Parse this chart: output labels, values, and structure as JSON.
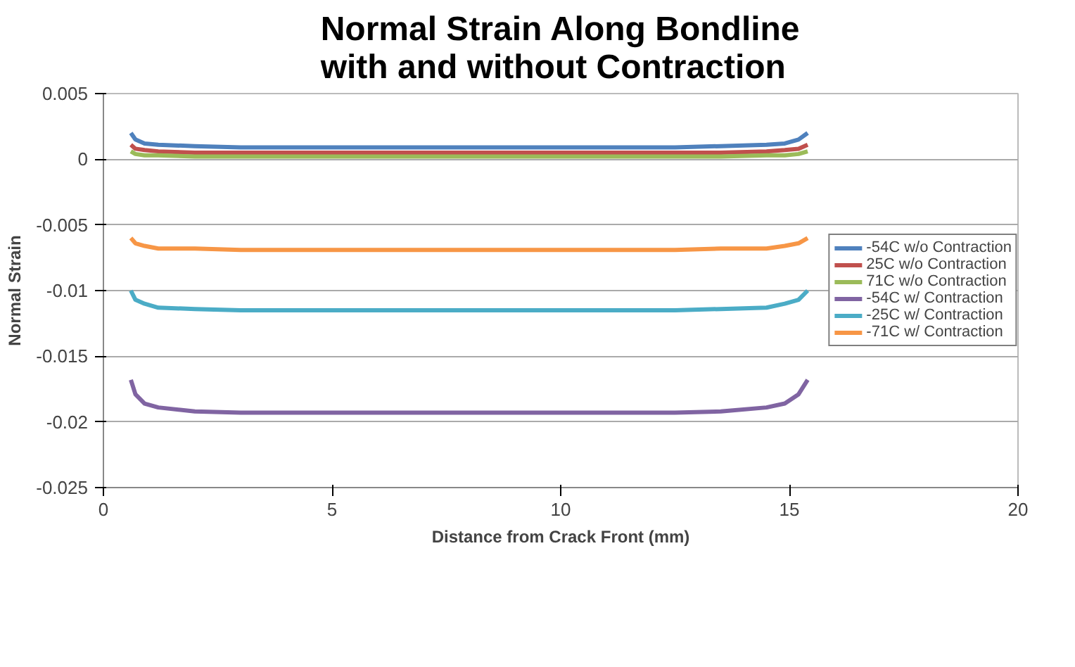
{
  "chart_data": {
    "type": "line",
    "title": "Normal Strain Along Bondline\nwith and without Contraction",
    "xlabel": "Distance from Crack Front (mm)",
    "ylabel": "Normal Strain",
    "x": [
      0.6,
      0.7,
      0.9,
      1.2,
      2,
      3,
      5,
      7.5,
      10,
      12.5,
      13.5,
      14.5,
      14.9,
      15.2,
      15.4
    ],
    "series": [
      {
        "name": "-54C w/o Contraction",
        "color": "#4f81bd",
        "values": [
          0.002,
          0.0015,
          0.0012,
          0.0011,
          0.001,
          0.0009,
          0.0009,
          0.0009,
          0.0009,
          0.0009,
          0.001,
          0.0011,
          0.0012,
          0.0015,
          0.002
        ]
      },
      {
        "name": "25C w/o Contraction",
        "color": "#c0504d",
        "values": [
          0.0011,
          0.0008,
          0.0007,
          0.0006,
          0.0005,
          0.0005,
          0.0005,
          0.0005,
          0.0005,
          0.0005,
          0.0005,
          0.0006,
          0.0007,
          0.0008,
          0.0011
        ]
      },
      {
        "name": "71C w/o Contraction",
        "color": "#9bbb59",
        "values": [
          0.0006,
          0.0004,
          0.0003,
          0.0003,
          0.0002,
          0.0002,
          0.0002,
          0.0002,
          0.0002,
          0.0002,
          0.0002,
          0.0003,
          0.0003,
          0.0004,
          0.0006
        ]
      },
      {
        "name": "-54C w/ Contraction",
        "color": "#8064a2",
        "values": [
          -0.0168,
          -0.0179,
          -0.0186,
          -0.0189,
          -0.0192,
          -0.0193,
          -0.0193,
          -0.0193,
          -0.0193,
          -0.0193,
          -0.0192,
          -0.0189,
          -0.0186,
          -0.0179,
          -0.0168
        ]
      },
      {
        "name": "-25C w/ Contraction",
        "color": "#4bacc6",
        "values": [
          -0.01,
          -0.0107,
          -0.011,
          -0.0113,
          -0.0114,
          -0.0115,
          -0.0115,
          -0.0115,
          -0.0115,
          -0.0115,
          -0.0114,
          -0.0113,
          -0.011,
          -0.0107,
          -0.01
        ]
      },
      {
        "name": "-71C w/ Contraction",
        "color": "#f79646",
        "values": [
          -0.006,
          -0.0064,
          -0.0066,
          -0.0068,
          -0.0068,
          -0.0069,
          -0.0069,
          -0.0069,
          -0.0069,
          -0.0069,
          -0.0068,
          -0.0068,
          -0.0066,
          -0.0064,
          -0.006
        ]
      }
    ],
    "xlim": [
      0,
      20
    ],
    "ylim": [
      -0.025,
      0.005
    ],
    "xticks": [
      0,
      5,
      10,
      15,
      20
    ],
    "yticks": [
      0.005,
      0,
      -0.005,
      -0.01,
      -0.015,
      -0.02,
      -0.025
    ],
    "grid": "y",
    "legend": "right",
    "marker": "none",
    "line_style": "solid"
  }
}
